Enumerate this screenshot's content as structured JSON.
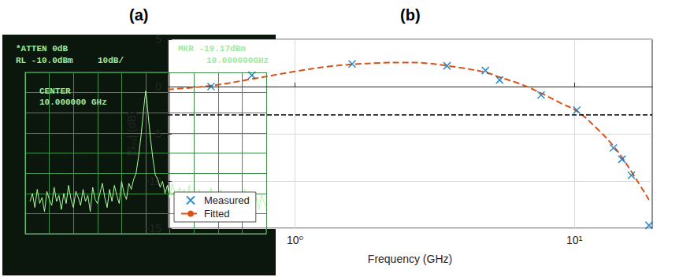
{
  "chart_data": [
    {
      "type": "line",
      "title": "(a)",
      "annotations": [
        "*ATTEN 0dB",
        "RL -10.0dBm",
        "10dB/",
        "MKR -19.17dBm",
        "10.000000GHz",
        "CENTER",
        "10.000000 GHz"
      ],
      "x": [
        0.2,
        0.3,
        0.4,
        0.5,
        0.6,
        0.7,
        0.8,
        0.9,
        1.0,
        1.1,
        1.2,
        1.3,
        1.4,
        1.5,
        1.6,
        1.7,
        1.8,
        1.9,
        2.0,
        2.1,
        2.2,
        2.3,
        2.4,
        2.5,
        2.6,
        2.7,
        2.8,
        2.9,
        3.0,
        3.1,
        3.2,
        3.3,
        3.4,
        3.5,
        3.6,
        3.7,
        3.8,
        3.9,
        4.0,
        4.1,
        4.2,
        4.3,
        4.4,
        4.5,
        4.6,
        4.7,
        4.8,
        4.9,
        4.95,
        5.0,
        5.05,
        5.1,
        5.2,
        5.3,
        5.4,
        5.5,
        5.6,
        5.7,
        5.8,
        5.9,
        6.0,
        6.1,
        6.2,
        6.3,
        6.4,
        6.5,
        6.6,
        6.7,
        6.8,
        6.9,
        7.0,
        7.1,
        7.2,
        7.3,
        7.4,
        7.5,
        7.6,
        7.7,
        7.8,
        7.9,
        8.0,
        8.1,
        8.2,
        8.3,
        8.4,
        8.5,
        8.6,
        8.7,
        8.8,
        8.9,
        9.0,
        9.1,
        9.2,
        9.3,
        9.4,
        9.5,
        9.6,
        9.7,
        9.8,
        9.9,
        10.0
      ],
      "values": [
        -74,
        -70,
        -77,
        -68,
        -75,
        -72,
        -79,
        -69,
        -73,
        -76,
        -67,
        -74,
        -71,
        -78,
        -70,
        -75,
        -66,
        -73,
        -77,
        -69,
        -72,
        -76,
        -68,
        -74,
        -71,
        -79,
        -67,
        -73,
        -75,
        -70,
        -65,
        -72,
        -77,
        -68,
        -74,
        -66,
        -71,
        -75,
        -64,
        -70,
        -73,
        -65,
        -68,
        -63,
        -60,
        -52,
        -42,
        -30,
        -24,
        -19.17,
        -24,
        -31,
        -43,
        -53,
        -61,
        -63,
        -67,
        -64,
        -70,
        -66,
        -72,
        -65,
        -69,
        -74,
        -67,
        -71,
        -68,
        -75,
        -66,
        -73,
        -70,
        -77,
        -68,
        -72,
        -74,
        -69,
        -76,
        -67,
        -73,
        -71,
        -78,
        -68,
        -74,
        -70,
        -75,
        -72,
        -77,
        -69,
        -74,
        -71,
        -79,
        -68,
        -75,
        -73,
        -70,
        -76,
        -72,
        -78,
        -71,
        -74,
        -77
      ],
      "color": "#a8ff9c",
      "xlim": [
        0,
        10
      ],
      "xticks": [
        0,
        1,
        2,
        3,
        4,
        5,
        6,
        7,
        8,
        9,
        10
      ],
      "ylim": [
        -90,
        -10
      ],
      "yticks": [
        -90,
        -80,
        -70,
        -60,
        -50,
        -40,
        -30,
        -20,
        -10
      ],
      "grid": true,
      "tick_labels": false
    },
    {
      "type": "line",
      "title": "(b)",
      "xlabel": "Frequency (GHz)",
      "ylabel": "|S₂₁| (dB)",
      "log": "x",
      "xlim": [
        0.35,
        19
      ],
      "xticks": [
        {
          "value": 1,
          "label": "10⁰"
        },
        {
          "value": 10,
          "label": "10¹"
        }
      ],
      "ylim": [
        -15,
        5
      ],
      "yticks": [
        -15,
        -10,
        -5,
        0,
        5
      ],
      "grid": true,
      "legend": "lower left",
      "hline": -3,
      "series": [
        {
          "name": "Measured",
          "type": "scatter",
          "color": "#0072bd",
          "marker": "x",
          "x": [
            0.5,
            0.7,
            1.6,
            3.5,
            4.8,
            5.4,
            7.6,
            10.2,
            13.8,
            14.8,
            16,
            18.5
          ],
          "values": [
            0,
            1.2,
            2.4,
            2.2,
            1.7,
            0.7,
            -0.9,
            -2.5,
            -6.5,
            -7.7,
            -9.4,
            -14.7
          ]
        },
        {
          "name": "Fitted",
          "type": "line",
          "color": "#d95319",
          "line_style": "dashed",
          "x": [
            0.35,
            0.5,
            0.7,
            1,
            1.3,
            1.6,
            2,
            2.5,
            3,
            3.5,
            4,
            4.8,
            5.4,
            6.5,
            7.6,
            9,
            10.2,
            12,
            13.8,
            14.8,
            16,
            17.3,
            18.5
          ],
          "values": [
            -0.3,
            0.1,
            0.8,
            1.6,
            2.1,
            2.35,
            2.5,
            2.55,
            2.45,
            2.2,
            1.95,
            1.5,
            1.0,
            0.2,
            -0.7,
            -1.8,
            -2.6,
            -4.4,
            -6.3,
            -7.5,
            -9.0,
            -10.6,
            -12.0
          ]
        }
      ]
    }
  ]
}
